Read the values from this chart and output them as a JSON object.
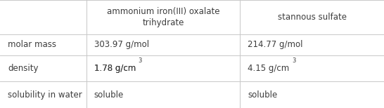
{
  "col_headers": [
    "",
    "ammonium iron(III) oxalate\ntrihydrate",
    "stannous sulfate"
  ],
  "row_labels": [
    "molar mass",
    "density",
    "solubility in water"
  ],
  "col1_values_base": [
    "303.97 g/mol",
    "1.78 g/cm",
    "soluble"
  ],
  "col2_values_base": [
    "214.77 g/mol",
    "4.15 g/cm",
    "soluble"
  ],
  "col1_has_super": [
    false,
    true,
    false
  ],
  "col2_has_super": [
    false,
    true,
    false
  ],
  "superscript": "3",
  "bg_color": "#ffffff",
  "text_color": "#3d3d3d",
  "grid_color": "#c8c8c8",
  "font_size": 8.5,
  "col_bounds": [
    0.0,
    0.225,
    0.625,
    1.0
  ],
  "row_bounds": [
    1.0,
    0.68,
    0.49,
    0.245,
    0.0
  ]
}
